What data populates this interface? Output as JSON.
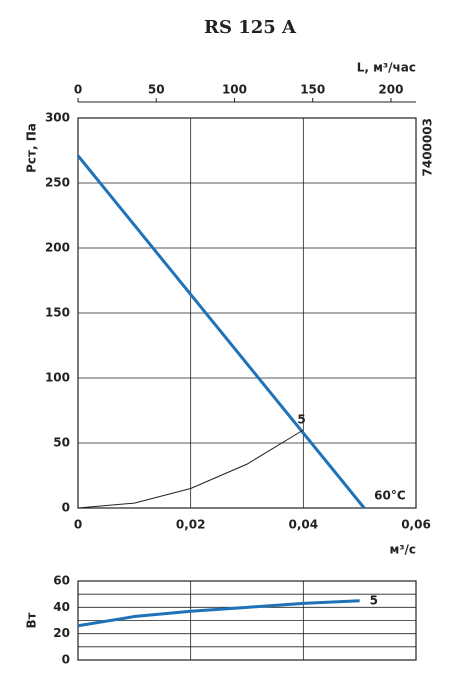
{
  "chart_data": [
    {
      "type": "line",
      "title": "RS 125 A",
      "xlabel": "м³/с",
      "ylabel": "Pст, Па",
      "x2label": "L, м³/час",
      "side_note": "7400003",
      "xlim": [
        0,
        0.06
      ],
      "xticks": [
        0,
        {
          "value": 0.02,
          "label": "0,02"
        },
        {
          "value": 0.04,
          "label": "0,04"
        },
        {
          "value": 0.06,
          "label": "0,06"
        }
      ],
      "x2lim": [
        0,
        216
      ],
      "x2ticks": [
        0,
        50,
        100,
        150,
        200
      ],
      "ylim": [
        0,
        300
      ],
      "yticks": [
        0,
        50,
        100,
        150,
        200,
        250,
        300
      ],
      "grid": true,
      "series": [
        {
          "name": "60°C",
          "color": "#1f72b8",
          "x": [
            0,
            0.0508
          ],
          "values": [
            271,
            0
          ]
        },
        {
          "name": "5",
          "color": "#222222",
          "x": [
            0,
            0.01,
            0.02,
            0.03,
            0.04
          ],
          "values": [
            0,
            3.75,
            15,
            33.75,
            60
          ]
        }
      ]
    },
    {
      "type": "line",
      "ylabel": "Вт",
      "xlim": [
        0,
        0.06
      ],
      "xgrid": [
        0.02,
        0.04
      ],
      "ylim": [
        0,
        60
      ],
      "yticks": [
        0,
        20,
        40,
        60
      ],
      "ygrid": [
        10,
        20,
        30,
        40,
        50
      ],
      "series": [
        {
          "name": "5",
          "color": "#1f72b8",
          "x": [
            0,
            0.01,
            0.02,
            0.03,
            0.04,
            0.05
          ],
          "values": [
            26,
            33,
            37,
            40,
            43,
            45
          ]
        }
      ]
    }
  ]
}
